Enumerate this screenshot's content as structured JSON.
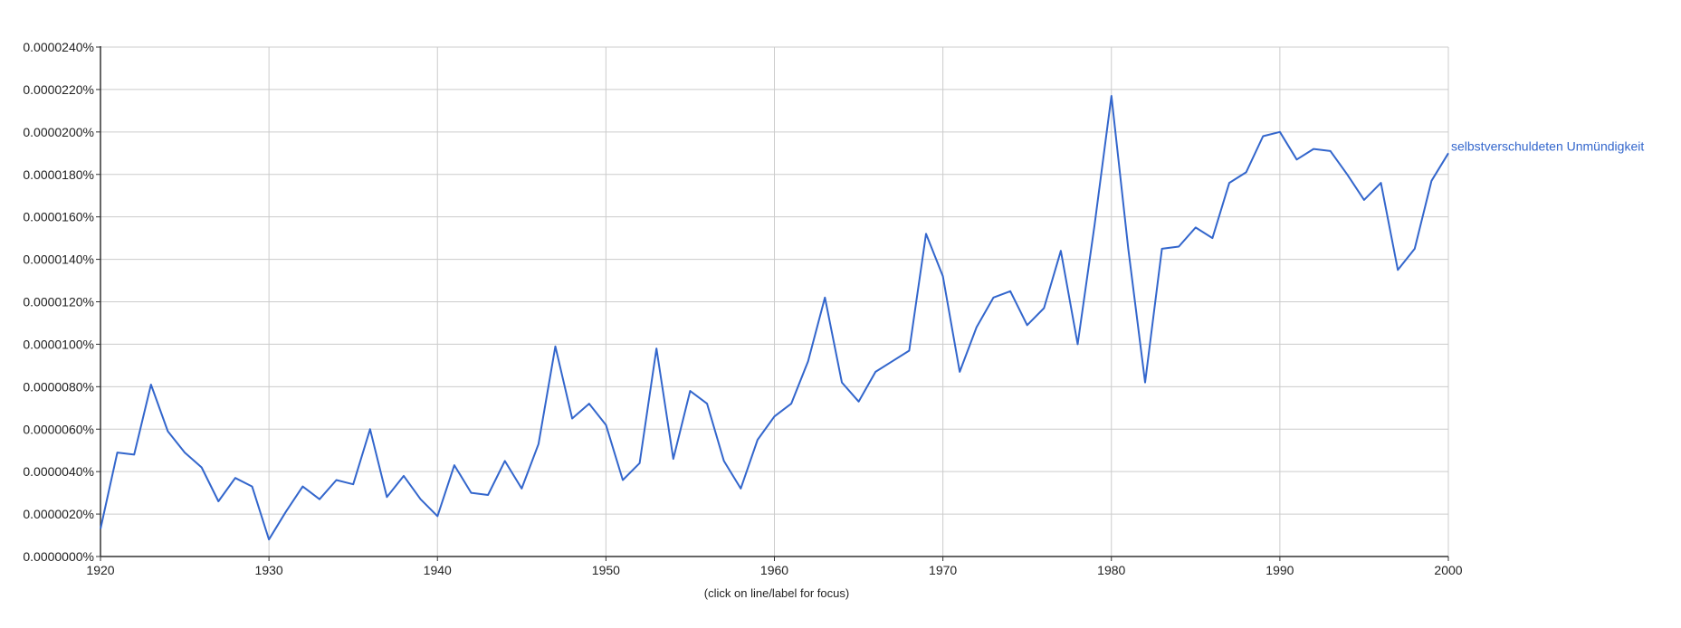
{
  "colors": {
    "series": "#3366cc",
    "grid": "#cccccc",
    "axis": "#333333",
    "text": "#222222"
  },
  "chart_data": {
    "type": "line",
    "title": "",
    "xlabel": "",
    "ylabel": "",
    "caption": "(click on line/label for focus)",
    "xlim": [
      1920,
      2000
    ],
    "ylim": [
      0,
      2.4e-05
    ],
    "x_ticks": [
      "1920",
      "1930",
      "1940",
      "1950",
      "1960",
      "1970",
      "1980",
      "1990",
      "2000"
    ],
    "y_ticks": [
      "0.0000000%",
      "0.0000020%",
      "0.0000040%",
      "0.0000060%",
      "0.0000080%",
      "0.0000100%",
      "0.0000120%",
      "0.0000140%",
      "0.0000160%",
      "0.0000180%",
      "0.0000200%",
      "0.0000220%",
      "0.0000240%"
    ],
    "grid": true,
    "legend": "series name at right end of line",
    "series": [
      {
        "name": "selbstverschuldeten Unmündigkeit",
        "x": [
          1920,
          1921,
          1922,
          1923,
          1924,
          1925,
          1926,
          1927,
          1928,
          1929,
          1930,
          1931,
          1932,
          1933,
          1934,
          1935,
          1936,
          1937,
          1938,
          1939,
          1940,
          1941,
          1942,
          1943,
          1944,
          1945,
          1946,
          1947,
          1948,
          1949,
          1950,
          1951,
          1952,
          1953,
          1954,
          1955,
          1956,
          1957,
          1958,
          1959,
          1960,
          1961,
          1962,
          1963,
          1964,
          1965,
          1966,
          1967,
          1968,
          1969,
          1970,
          1971,
          1972,
          1973,
          1974,
          1975,
          1976,
          1977,
          1978,
          1979,
          1980,
          1981,
          1982,
          1983,
          1984,
          1985,
          1986,
          1987,
          1988,
          1989,
          1990,
          1991,
          1992,
          1993,
          1994,
          1995,
          1996,
          1997,
          1998,
          1999,
          2000
        ],
        "values": [
          1.3e-06,
          4.9e-06,
          4.8e-06,
          8.1e-06,
          5.9e-06,
          4.9e-06,
          4.2e-06,
          2.6e-06,
          3.7e-06,
          3.3e-06,
          8e-07,
          2.1e-06,
          3.3e-06,
          2.7e-06,
          3.6e-06,
          3.4e-06,
          6e-06,
          2.8e-06,
          3.8e-06,
          2.7e-06,
          1.9e-06,
          4.3e-06,
          3e-06,
          2.9e-06,
          4.5e-06,
          3.2e-06,
          5.3e-06,
          9.9e-06,
          6.5e-06,
          7.2e-06,
          6.2e-06,
          3.6e-06,
          4.4e-06,
          9.8e-06,
          4.6e-06,
          7.8e-06,
          7.2e-06,
          4.5e-06,
          3.2e-06,
          5.5e-06,
          6.6e-06,
          7.2e-06,
          9.2e-06,
          1.22e-05,
          8.2e-06,
          7.3e-06,
          8.7e-06,
          9.2e-06,
          9.7e-06,
          1.52e-05,
          1.32e-05,
          8.7e-06,
          1.08e-05,
          1.22e-05,
          1.25e-05,
          1.09e-05,
          1.17e-05,
          1.44e-05,
          1e-05,
          1.56e-05,
          2.17e-05,
          1.45e-05,
          8.2e-06,
          1.45e-05,
          1.46e-05,
          1.55e-05,
          1.5e-05,
          1.76e-05,
          1.81e-05,
          1.98e-05,
          2e-05,
          1.87e-05,
          1.92e-05,
          1.91e-05,
          1.8e-05,
          1.68e-05,
          1.76e-05,
          1.35e-05,
          1.45e-05,
          1.77e-05,
          1.9e-05
        ]
      }
    ]
  }
}
